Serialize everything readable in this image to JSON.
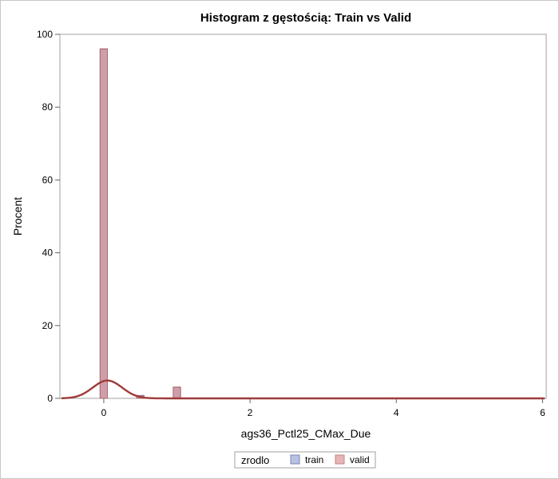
{
  "chart_data": {
    "type": "bar",
    "title": "Histogram z gęstością: Train vs Valid",
    "xlabel": "ags36_Pctl25_CMax_Due",
    "ylabel": "Procent",
    "xlim": [
      -0.6,
      6.05
    ],
    "ylim": [
      0,
      100
    ],
    "x_ticks": [
      0,
      2,
      4,
      6
    ],
    "y_ticks": [
      0,
      20,
      40,
      60,
      80,
      100
    ],
    "x_tick_labels": [
      "0",
      "2",
      "4",
      "6"
    ],
    "y_tick_labels": [
      "0",
      "20",
      "40",
      "60",
      "80",
      "100"
    ],
    "bin_width": 0.1,
    "series": [
      {
        "name": "train",
        "color": "#7f8dc9",
        "bins": [
          {
            "x0": -0.05,
            "x1": 0.05,
            "value": 96.0
          },
          {
            "x0": 0.45,
            "x1": 0.55,
            "value": 0.8
          },
          {
            "x0": 0.95,
            "x1": 1.05,
            "value": 3.0
          }
        ]
      },
      {
        "name": "valid",
        "color": "#d98e8e",
        "bins": [
          {
            "x0": -0.05,
            "x1": 0.05,
            "value": 96.0
          },
          {
            "x0": 0.45,
            "x1": 0.55,
            "value": 0.7
          },
          {
            "x0": 0.95,
            "x1": 1.05,
            "value": 3.1
          }
        ]
      }
    ],
    "density_curve": {
      "type": "normal",
      "mean": 0.05,
      "sd": 0.2,
      "scale": 4.9,
      "color": "#a03a3a"
    },
    "legend": {
      "title": "zrodlo",
      "position": "bottom",
      "items": [
        "train",
        "valid"
      ]
    },
    "grid": false
  }
}
